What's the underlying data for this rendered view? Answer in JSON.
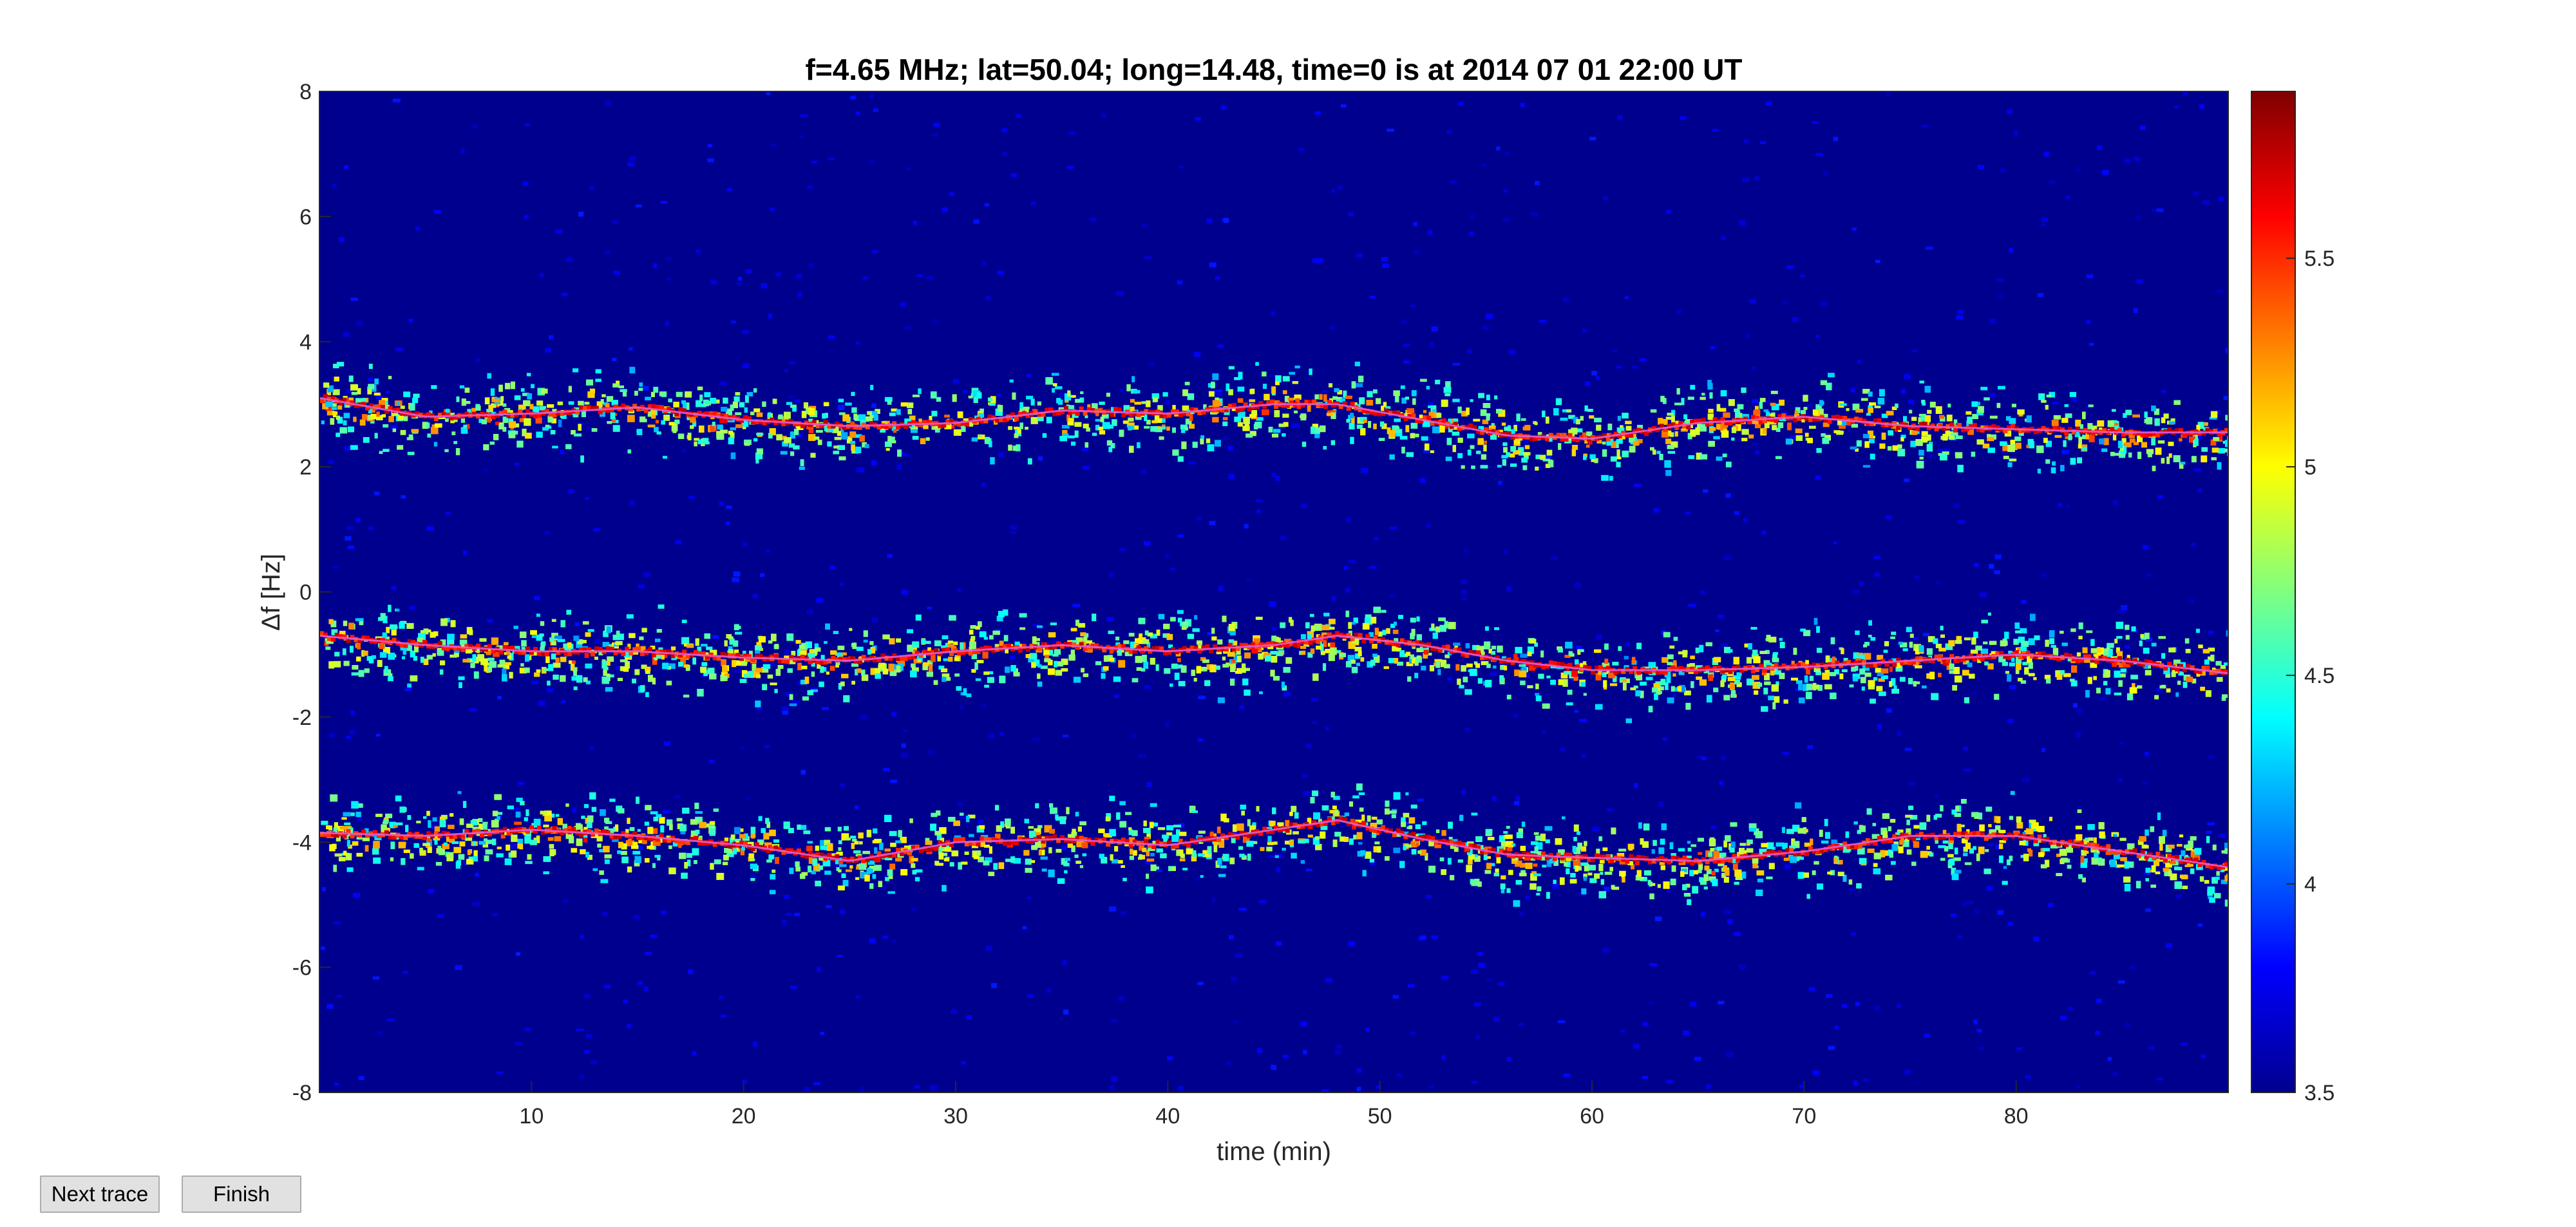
{
  "window": {
    "buttons": {
      "next_trace": "Next trace",
      "finish": "Finish"
    }
  },
  "chart_data": {
    "type": "heatmap",
    "title": "f=4.65 MHz;  lat=50.04; long=14.48, time=0 is at 2014 07 01 22:00 UT",
    "xlabel": "time (min)",
    "ylabel": "Δf [Hz]",
    "xlim": [
      0,
      90
    ],
    "ylim": [
      -8,
      8
    ],
    "xticks": [
      10,
      20,
      30,
      40,
      50,
      60,
      70,
      80
    ],
    "yticks": [
      -8,
      -6,
      -4,
      -2,
      0,
      2,
      4,
      6,
      8
    ],
    "colorbar": {
      "colormap": "jet",
      "range": [
        3.5,
        5.9
      ],
      "ticks": [
        3.5,
        4,
        4.5,
        5,
        5.5
      ]
    },
    "background_color": "#00008f",
    "trace_line_color": "#e060e0",
    "series": [
      {
        "x": [
          0,
          5,
          10,
          15,
          20,
          25,
          30,
          35,
          40,
          45,
          48,
          52,
          56,
          60,
          65,
          70,
          75,
          80,
          85,
          90
        ],
        "y": [
          3.1,
          2.8,
          2.85,
          2.95,
          2.75,
          2.65,
          2.7,
          2.9,
          2.85,
          3.0,
          3.0,
          2.75,
          2.5,
          2.45,
          2.7,
          2.8,
          2.65,
          2.6,
          2.55,
          2.55
        ]
      },
      {
        "x": [
          0,
          5,
          10,
          15,
          20,
          25,
          30,
          35,
          40,
          45,
          48,
          52,
          56,
          60,
          65,
          70,
          75,
          80,
          85,
          90
        ],
        "y": [
          -0.7,
          -0.85,
          -0.95,
          -0.95,
          -1.05,
          -1.1,
          -0.95,
          -0.85,
          -0.95,
          -0.85,
          -0.7,
          -0.85,
          -1.1,
          -1.25,
          -1.25,
          -1.2,
          -1.1,
          -1.0,
          -1.1,
          -1.3
        ]
      },
      {
        "x": [
          0,
          5,
          10,
          15,
          20,
          25,
          30,
          35,
          40,
          45,
          48,
          52,
          56,
          60,
          65,
          70,
          75,
          80,
          85,
          90
        ],
        "y": [
          -3.85,
          -3.9,
          -3.8,
          -3.9,
          -4.05,
          -4.3,
          -4.0,
          -3.95,
          -4.05,
          -3.8,
          -3.65,
          -3.95,
          -4.2,
          -4.25,
          -4.3,
          -4.15,
          -3.9,
          -3.9,
          -4.15,
          -4.4
        ]
      }
    ]
  }
}
